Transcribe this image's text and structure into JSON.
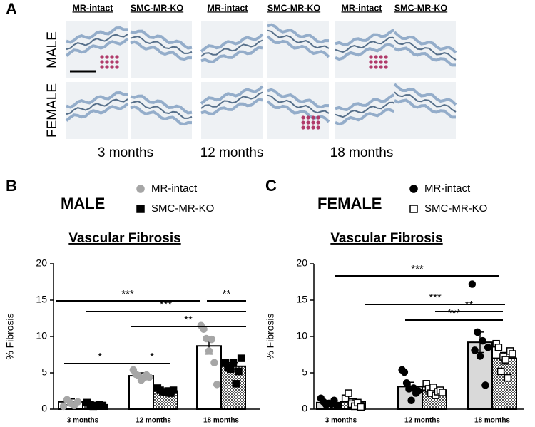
{
  "panel_a": {
    "label": "A",
    "column_headers": [
      "MR-intact",
      "SMC-MR-KO",
      "MR-intact",
      "SMC-MR-KO",
      "MR-intact",
      "SMC-MR-KO"
    ],
    "row_labels": [
      "MALE",
      "FEMALE"
    ],
    "time_labels": [
      "3 months",
      "12 months",
      "18 months"
    ]
  },
  "chart_data": [
    {
      "type": "bar",
      "panel_label": "B",
      "group_title": "MALE",
      "title": "Vascular Fibrosis",
      "y_label": "% Fibrosis",
      "categories": [
        "3 months",
        "12 months",
        "18 months"
      ],
      "ylim": [
        0,
        20
      ],
      "yticks": [
        0,
        5,
        10,
        15,
        20
      ],
      "series": [
        {
          "name": "MR-intact",
          "color": "#a6a6a6",
          "bar_fill": "#ffffff",
          "marker": "circle",
          "marker_fill": "#a6a6a6",
          "values": [
            1.0,
            4.6,
            8.7
          ],
          "errors": [
            0.4,
            0.4,
            1.1
          ],
          "points": [
            [
              0.4,
              1.3,
              0.8,
              0.5,
              1.0
            ],
            [
              5.4,
              4.8,
              4.6,
              4.0,
              4.3,
              4.7,
              4.4
            ],
            [
              11.5,
              11.0,
              9.7,
              8.0,
              9.6,
              6.4,
              3.4
            ]
          ]
        },
        {
          "name": "SMC-MR-KO",
          "color": "#000000",
          "bar_fill": "checker",
          "marker": "square",
          "marker_fill": "#000000",
          "values": [
            0.6,
            2.5,
            5.9
          ],
          "errors": [
            0.1,
            0.2,
            0.5
          ],
          "points": [
            [
              0.9,
              0.6,
              0.4,
              0.5,
              0.6,
              0.5
            ],
            [
              2.9,
              2.6,
              2.4,
              2.3,
              2.5,
              2.2,
              2.6
            ],
            [
              6.4,
              5.8,
              5.5,
              6.4,
              3.5,
              5.2,
              7.0
            ]
          ]
        }
      ],
      "significance": [
        "***",
        "**",
        "***",
        "**",
        "*",
        "*"
      ]
    },
    {
      "type": "bar",
      "panel_label": "C",
      "group_title": "FEMALE",
      "title": "Vascular Fibrosis",
      "y_label": "% Fibrosis",
      "categories": [
        "3 months",
        "12 months",
        "18 months"
      ],
      "ylim": [
        0,
        20
      ],
      "yticks": [
        0,
        5,
        10,
        15,
        20
      ],
      "series": [
        {
          "name": "MR-intact",
          "color": "#000000",
          "bar_fill": "#d9d9d9",
          "marker": "circle",
          "marker_fill": "#000000",
          "values": [
            0.9,
            3.1,
            9.2
          ],
          "errors": [
            0.2,
            0.6,
            1.4
          ],
          "points": [
            [
              1.5,
              1.0,
              0.6,
              0.8,
              0.7,
              1.2,
              0.5
            ],
            [
              5.4,
              5.1,
              3.6,
              2.8,
              1.2,
              2.9,
              2.2,
              2.5
            ],
            [
              17.2,
              8.1,
              10.6,
              7.3,
              9.4,
              3.3,
              8.5
            ]
          ]
        },
        {
          "name": "SMC-MR-KO",
          "color": "#000000",
          "bar_fill": "checker",
          "marker": "square",
          "marker_fill": "#ffffff",
          "values": [
            1.0,
            2.6,
            7.0
          ],
          "errors": [
            0.4,
            0.3,
            0.8
          ],
          "points": [
            [
              1.5,
              2.2,
              0.7,
              0.4,
              0.9,
              0.3
            ],
            [
              3.5,
              2.8,
              2.2,
              3.0,
              1.9,
              2.4,
              2.6,
              2.3
            ],
            [
              9.0,
              8.5,
              5.2,
              7.2,
              6.8,
              4.3,
              8.0,
              7.6
            ]
          ]
        }
      ],
      "significance": [
        "***",
        "***",
        "***",
        "**"
      ]
    }
  ]
}
